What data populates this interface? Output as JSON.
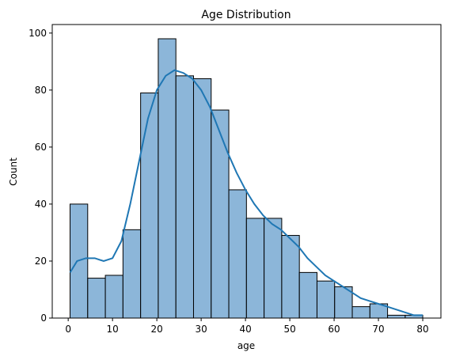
{
  "chart_data": {
    "type": "bar",
    "title": "Age Distribution",
    "xlabel": "age",
    "ylabel": "Count",
    "xlim": [
      -3.6,
      84.1
    ],
    "ylim": [
      0,
      103
    ],
    "grid": false,
    "colors": {
      "bar": "#6fa4cf",
      "line": "#1f77b4"
    },
    "bins": [
      {
        "x0": 0.42,
        "x1": 4.4,
        "count": 40
      },
      {
        "x0": 4.4,
        "x1": 8.38,
        "count": 14
      },
      {
        "x0": 8.38,
        "x1": 12.36,
        "count": 15
      },
      {
        "x0": 12.36,
        "x1": 16.34,
        "count": 31
      },
      {
        "x0": 16.34,
        "x1": 20.32,
        "count": 79
      },
      {
        "x0": 20.32,
        "x1": 24.3,
        "count": 98
      },
      {
        "x0": 24.3,
        "x1": 28.28,
        "count": 85
      },
      {
        "x0": 28.28,
        "x1": 32.26,
        "count": 84
      },
      {
        "x0": 32.26,
        "x1": 36.24,
        "count": 73
      },
      {
        "x0": 36.24,
        "x1": 40.22,
        "count": 45
      },
      {
        "x0": 40.22,
        "x1": 44.2,
        "count": 35
      },
      {
        "x0": 44.2,
        "x1": 48.18,
        "count": 35
      },
      {
        "x0": 48.18,
        "x1": 52.16,
        "count": 29
      },
      {
        "x0": 52.16,
        "x1": 56.14,
        "count": 16
      },
      {
        "x0": 56.14,
        "x1": 60.12,
        "count": 13
      },
      {
        "x0": 60.12,
        "x1": 64.1,
        "count": 11
      },
      {
        "x0": 64.1,
        "x1": 68.08,
        "count": 4
      },
      {
        "x0": 68.08,
        "x1": 72.06,
        "count": 5
      },
      {
        "x0": 72.06,
        "x1": 76.04,
        "count": 1
      },
      {
        "x0": 76.04,
        "x1": 80.0,
        "count": 1
      }
    ],
    "kde": {
      "x": [
        0.42,
        2,
        4,
        6,
        8,
        10,
        12,
        14,
        16,
        18,
        20,
        22,
        24,
        26,
        28,
        30,
        32,
        34,
        36,
        38,
        40,
        42,
        44,
        46,
        48,
        50,
        52,
        54,
        56,
        58,
        60,
        62,
        64,
        66,
        68,
        70,
        72,
        74,
        76,
        78,
        80
      ],
      "y": [
        16,
        20,
        21,
        21,
        20,
        21,
        27,
        40,
        55,
        70,
        80,
        85,
        87,
        86,
        84,
        80,
        74,
        66,
        58,
        51,
        45,
        40,
        36,
        33,
        31,
        28,
        25,
        21,
        18,
        15,
        13,
        11,
        9,
        7,
        6,
        5,
        4,
        3,
        2,
        1,
        1
      ]
    },
    "xticks": [
      {
        "value": 0,
        "label": "0"
      },
      {
        "value": 10,
        "label": "10"
      },
      {
        "value": 20,
        "label": "20"
      },
      {
        "value": 30,
        "label": "30"
      },
      {
        "value": 40,
        "label": "40"
      },
      {
        "value": 50,
        "label": "50"
      },
      {
        "value": 60,
        "label": "60"
      },
      {
        "value": 70,
        "label": "70"
      },
      {
        "value": 80,
        "label": "80"
      }
    ],
    "yticks": [
      {
        "value": 0,
        "label": "0"
      },
      {
        "value": 20,
        "label": "20"
      },
      {
        "value": 40,
        "label": "40"
      },
      {
        "value": 60,
        "label": "60"
      },
      {
        "value": 80,
        "label": "80"
      },
      {
        "value": 100,
        "label": "100"
      }
    ]
  }
}
